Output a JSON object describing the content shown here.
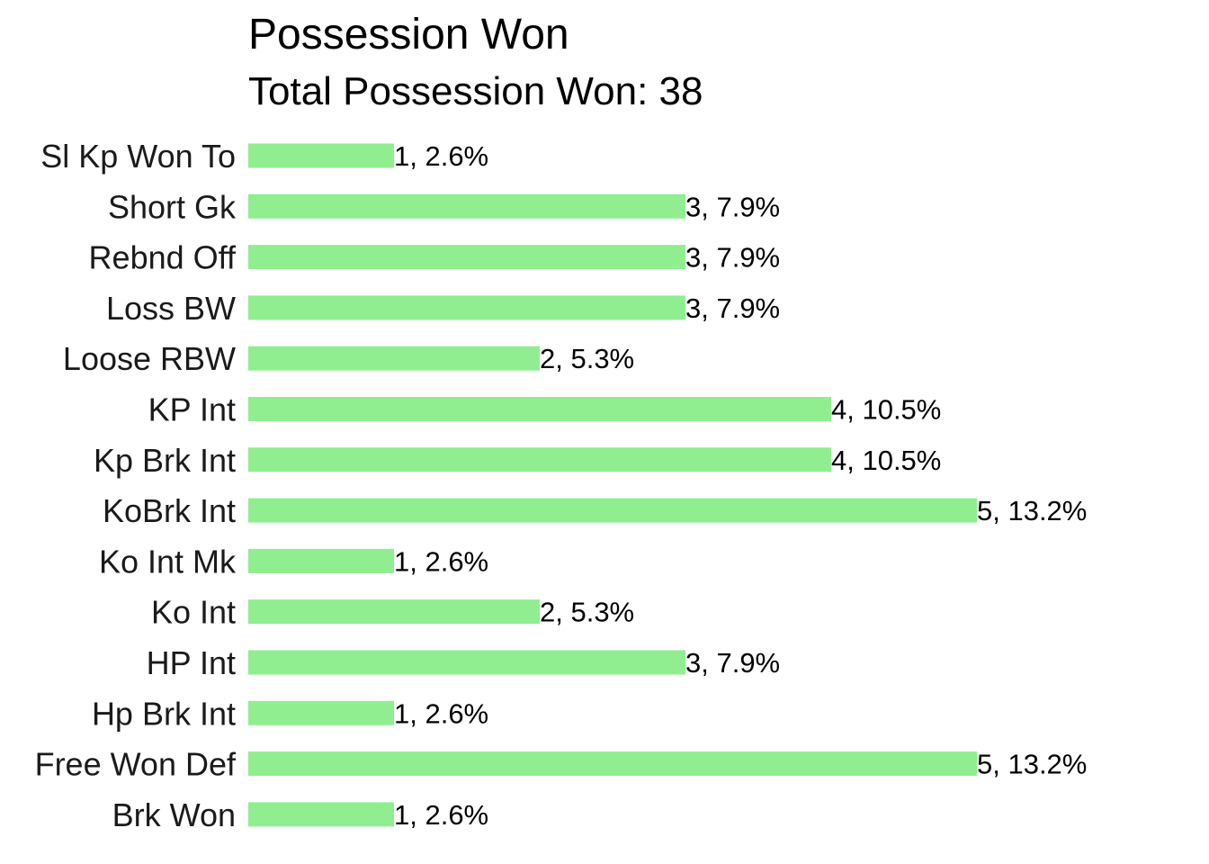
{
  "chart_data": {
    "type": "bar",
    "orientation": "horizontal",
    "title": "Possession Won",
    "subtitle": "Total Possession Won: 38",
    "categories": [
      "Sl Kp Won To",
      "Short Gk",
      "Rebnd Off",
      "Loss BW",
      "Loose RBW",
      "KP Int",
      "Kp Brk Int",
      "KoBrk Int",
      "Ko Int Mk",
      "Ko Int",
      "HP Int",
      "Hp Brk Int",
      "Free Won Def",
      "Brk Won"
    ],
    "values": [
      1,
      3,
      3,
      3,
      2,
      4,
      4,
      5,
      1,
      2,
      3,
      1,
      5,
      1
    ],
    "data_labels": [
      "1, 2.6%",
      "3, 7.9%",
      "3, 7.9%",
      "3, 7.9%",
      "2, 5.3%",
      "4, 10.5%",
      "4, 10.5%",
      "5, 13.2%",
      "1, 2.6%",
      "2, 5.3%",
      "3, 7.9%",
      "1, 2.6%",
      "5, 13.2%",
      "1, 2.6%"
    ],
    "xlim": [
      0,
      5
    ],
    "xlabel": "",
    "ylabel": "",
    "grid": false,
    "legend": "none",
    "bar_color": "#90ee90"
  }
}
